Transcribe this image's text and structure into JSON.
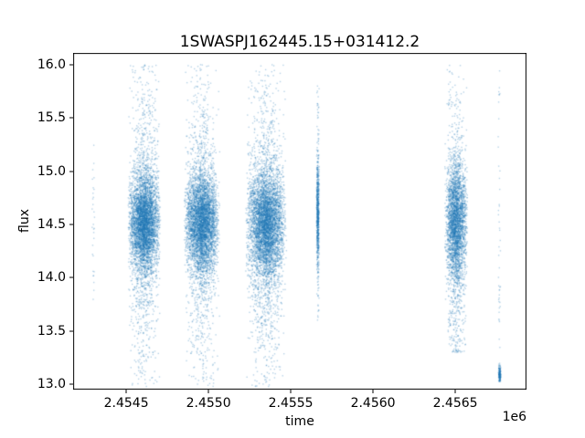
{
  "figure": {
    "title": "1SWASPJ162445.15+031412.2"
  },
  "chart_data": {
    "type": "scatter",
    "title": "1SWASPJ162445.15+031412.2",
    "xlabel": "time",
    "ylabel": "flux",
    "x_offset_text": "1e6",
    "point_color": "#1f77b4",
    "point_alpha": 0.32,
    "point_size": 1.4,
    "grid": false,
    "legend": null,
    "xlim": [
      2454177,
      2456933
    ],
    "ylim": [
      12.95,
      16.11
    ],
    "xticks": {
      "values": [
        2454500,
        2455000,
        2455500,
        2456000,
        2456500
      ],
      "labels": [
        "2.4545",
        "2.4550",
        "2.4555",
        "2.4560",
        "2.4565"
      ]
    },
    "yticks": {
      "values": [
        13.0,
        13.5,
        14.0,
        14.5,
        15.0,
        15.5,
        16.0
      ],
      "labels": [
        "13.0",
        "13.5",
        "14.0",
        "14.5",
        "15.0",
        "15.5",
        "16.0"
      ]
    },
    "seed": 42,
    "clusters": [
      {
        "name": "sparse-column-1",
        "x_center": 2454300,
        "x_half": 8,
        "n": 30,
        "y_clip": [
          13.7,
          15.3
        ],
        "y_mix": [
          {
            "type": "uniform",
            "w": 1.0,
            "min": 13.75,
            "max": 15.25
          }
        ]
      },
      {
        "name": "dense-cluster-1",
        "x_center": 2454610,
        "x_half": 100,
        "n": 5200,
        "y_clip": [
          12.98,
          16.0
        ],
        "y_mix": [
          {
            "type": "gauss",
            "w": 0.72,
            "mean": 14.52,
            "sd": 0.22
          },
          {
            "type": "gauss",
            "w": 0.23,
            "mean": 14.5,
            "sd": 0.55
          },
          {
            "type": "uniform",
            "w": 0.05,
            "min": 13.0,
            "max": 16.0
          }
        ]
      },
      {
        "name": "dense-cluster-2",
        "x_center": 2454960,
        "x_half": 110,
        "n": 5200,
        "y_clip": [
          12.98,
          16.0
        ],
        "y_mix": [
          {
            "type": "gauss",
            "w": 0.72,
            "mean": 14.52,
            "sd": 0.22
          },
          {
            "type": "gauss",
            "w": 0.23,
            "mean": 14.5,
            "sd": 0.55
          },
          {
            "type": "uniform",
            "w": 0.05,
            "min": 13.0,
            "max": 16.0
          }
        ]
      },
      {
        "name": "dense-cluster-3",
        "x_center": 2455350,
        "x_half": 125,
        "n": 5600,
        "y_clip": [
          12.98,
          16.0
        ],
        "y_mix": [
          {
            "type": "gauss",
            "w": 0.7,
            "mean": 14.5,
            "sd": 0.24
          },
          {
            "type": "gauss",
            "w": 0.25,
            "mean": 14.45,
            "sd": 0.55
          },
          {
            "type": "uniform",
            "w": 0.05,
            "min": 13.0,
            "max": 16.0
          }
        ]
      },
      {
        "name": "thin-column",
        "x_center": 2455665,
        "x_half": 9,
        "n": 750,
        "y_clip": [
          13.6,
          15.8
        ],
        "y_mix": [
          {
            "type": "gauss",
            "w": 0.75,
            "mean": 14.6,
            "sd": 0.25
          },
          {
            "type": "gauss",
            "w": 0.2,
            "mean": 14.55,
            "sd": 0.45
          },
          {
            "type": "uniform",
            "w": 0.05,
            "min": 13.6,
            "max": 15.8
          }
        ]
      },
      {
        "name": "dense-cluster-4",
        "x_center": 2456505,
        "x_half": 70,
        "n": 3400,
        "y_clip": [
          13.3,
          16.0
        ],
        "y_mix": [
          {
            "type": "gauss",
            "w": 0.66,
            "mean": 14.55,
            "sd": 0.26
          },
          {
            "type": "gauss",
            "w": 0.28,
            "mean": 14.35,
            "sd": 0.5
          },
          {
            "type": "uniform",
            "w": 0.06,
            "min": 13.3,
            "max": 16.0
          }
        ]
      },
      {
        "name": "sparse-column-2-bottom-blob",
        "x_center": 2456770,
        "x_half": 8,
        "n": 170,
        "y_clip": [
          13.02,
          13.2
        ],
        "y_mix": [
          {
            "type": "gauss",
            "w": 1.0,
            "mean": 13.09,
            "sd": 0.04
          }
        ]
      },
      {
        "name": "sparse-column-2",
        "x_center": 2456768,
        "x_half": 8,
        "n": 45,
        "y_clip": [
          13.25,
          16.0
        ],
        "y_mix": [
          {
            "type": "uniform",
            "w": 1.0,
            "min": 13.3,
            "max": 15.97
          }
        ]
      }
    ]
  }
}
